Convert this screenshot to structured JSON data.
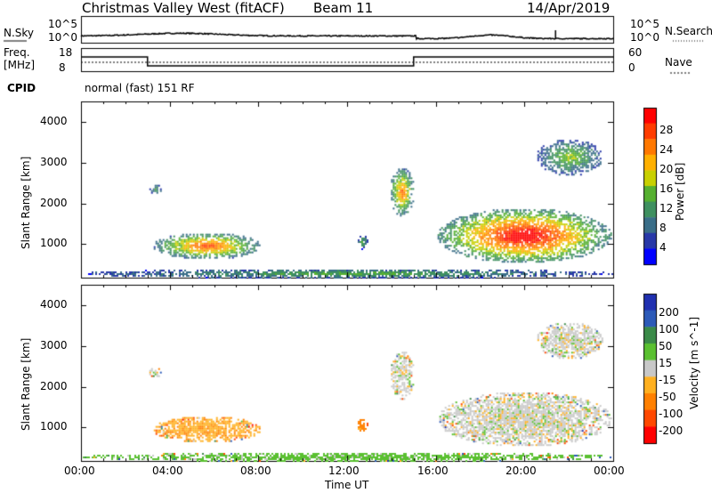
{
  "header": {
    "radar": "Christmas Valley West (fitACF)",
    "beam": "Beam 11",
    "date": "14/Apr/2019"
  },
  "top_panel": {
    "left_label": "N.Sky",
    "left_ticks": [
      "10^5",
      "10^0"
    ],
    "right_ticks": [
      "10^5",
      "10^0"
    ],
    "right_label": "N.Search"
  },
  "freq_panel": {
    "left_label_1": "Freq.",
    "left_label_2": "[MHz]",
    "left_ticks": [
      "18",
      "8"
    ],
    "right_ticks": [
      "60",
      "0"
    ],
    "right_label": "Nave",
    "cpid_label": "CPID",
    "mode": "normal (fast) 151 RF"
  },
  "colors": {
    "power_scale": [
      "#0000ff",
      "#2838a8",
      "#3a6e88",
      "#3f9060",
      "#56b030",
      "#c8d000",
      "#ffb000",
      "#ff7800",
      "#ff3c00",
      "#ff0000"
    ],
    "velocity_scale": [
      "#2030b0",
      "#2c5ab8",
      "#3a8a48",
      "#5ac030",
      "#c8c8c8",
      "#ffb020",
      "#ff8000",
      "#ff4800",
      "#ff0000"
    ]
  },
  "chart_data": [
    {
      "type": "heatmap",
      "name": "power",
      "ylabel": "Slant Range [km]",
      "xlabel": "",
      "y_ticks": [
        "1000",
        "2000",
        "3000",
        "4000"
      ],
      "ylim": [
        180,
        4500
      ],
      "xlim": [
        0,
        24
      ],
      "colorbar_label": "Power [dB]",
      "colorbar_ticks": [
        "4",
        "8",
        "12",
        "16",
        "20",
        "24",
        "28"
      ],
      "colorbar_range": [
        0,
        30
      ],
      "regions": [
        {
          "t": [
            3.2,
            8.1
          ],
          "r": [
            650,
            1300
          ],
          "peak_dB": 24
        },
        {
          "t": [
            3.0,
            3.6
          ],
          "r": [
            2250,
            2500
          ],
          "peak_dB": 10
        },
        {
          "t": [
            12.4,
            12.9
          ],
          "r": [
            900,
            1250
          ],
          "peak_dB": 12
        },
        {
          "t": [
            13.9,
            15.0
          ],
          "r": [
            1700,
            2900
          ],
          "peak_dB": 22
        },
        {
          "t": [
            16.0,
            23.9
          ],
          "r": [
            550,
            1900
          ],
          "peak_dB": 30
        },
        {
          "t": [
            20.5,
            23.5
          ],
          "r": [
            2700,
            3600
          ],
          "peak_dB": 14
        },
        {
          "t": [
            0.0,
            24.0
          ],
          "r": [
            180,
            420
          ],
          "peak_dB": 12
        }
      ]
    },
    {
      "type": "heatmap",
      "name": "velocity",
      "ylabel": "Slant Range [km]",
      "xlabel": "Time UT",
      "x_ticks": [
        "00:00",
        "04:00",
        "08:00",
        "12:00",
        "16:00",
        "20:00",
        "00:00"
      ],
      "y_ticks": [
        "1000",
        "2000",
        "3000",
        "4000"
      ],
      "ylim": [
        180,
        4500
      ],
      "xlim": [
        0,
        24
      ],
      "colorbar_label": "Velocity [m s^-1]",
      "colorbar_ticks": [
        "200",
        "100",
        "50",
        "15",
        "-15",
        "-50",
        "-100",
        "-200"
      ],
      "colorbar_range": [
        -250,
        250
      ],
      "regions": [
        {
          "t": [
            3.2,
            8.1
          ],
          "r": [
            650,
            1300
          ],
          "velocity": -40
        },
        {
          "t": [
            3.0,
            3.6
          ],
          "r": [
            2250,
            2500
          ],
          "velocity": 0
        },
        {
          "t": [
            12.4,
            12.9
          ],
          "r": [
            900,
            1250
          ],
          "velocity": -60
        },
        {
          "t": [
            13.9,
            15.0
          ],
          "r": [
            1700,
            2900
          ],
          "velocity": 0
        },
        {
          "t": [
            16.0,
            23.9
          ],
          "r": [
            550,
            1900
          ],
          "velocity": 0
        },
        {
          "t": [
            20.5,
            23.5
          ],
          "r": [
            2700,
            3600
          ],
          "velocity": 0
        },
        {
          "t": [
            0.0,
            24.0
          ],
          "r": [
            180,
            420
          ],
          "velocity": 30
        }
      ]
    }
  ]
}
